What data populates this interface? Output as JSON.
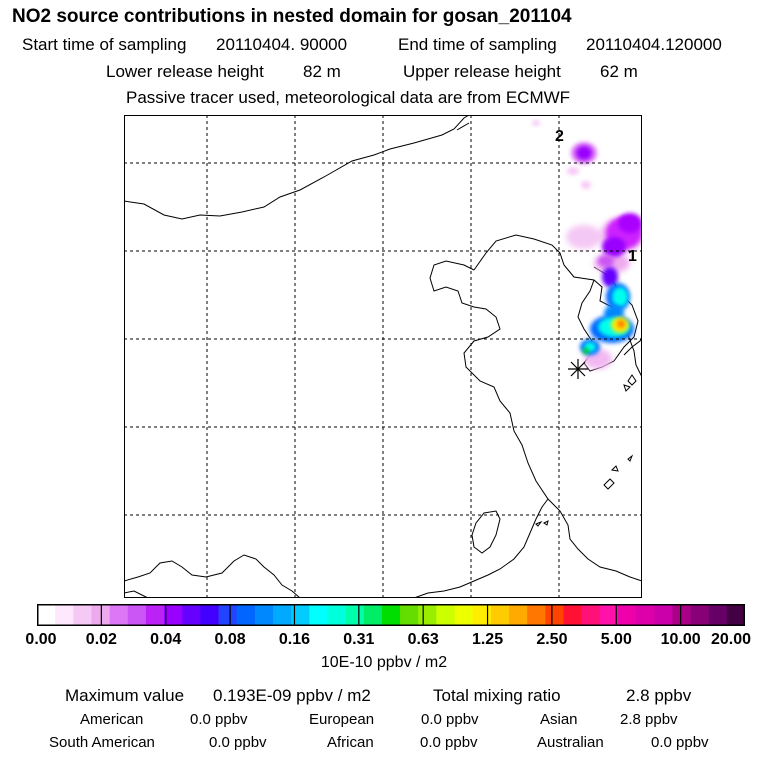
{
  "title": "NO2 source contributions in nested domain for gosan_201104",
  "header": {
    "start_label": "Start time of sampling",
    "start_value": "20110404. 90000",
    "end_label": "End time of sampling",
    "end_value": "20110404.120000",
    "lower_label": "Lower release height",
    "lower_value": "82 m",
    "upper_label": "Upper release height",
    "upper_value": "62 m",
    "note": "Passive tracer used, meteorological data are from ECMWF"
  },
  "map": {
    "annotations": [
      {
        "label": "2"
      },
      {
        "label": "1"
      }
    ],
    "source_marker": "asterisk-icon",
    "color_scale": {
      "white": "#ffffff",
      "pink": "#f2a0f2",
      "magenta": "#cc00ff",
      "purple": "#8800ff",
      "blue": "#0066ff",
      "cyan": "#00ffee",
      "green": "#00e060",
      "yellow": "#ffee00",
      "red": "#ff2020"
    }
  },
  "colorbar": {
    "units": "10E-10 ppbv / m2",
    "ticks": [
      "0.00",
      "0.02",
      "0.04",
      "0.08",
      "0.16",
      "0.31",
      "0.63",
      "1.25",
      "2.50",
      "5.00",
      "10.00",
      "20.00"
    ],
    "segments": [
      "#ffffff",
      "#fde8fd",
      "#f6c8f6",
      "#eeaaee",
      "#dd77f5",
      "#cc55f5",
      "#bb22f5",
      "#9900ff",
      "#6600ff",
      "#4400ff",
      "#2244ff",
      "#0066ff",
      "#0088ff",
      "#00aaff",
      "#00ccff",
      "#00ffff",
      "#00ffdd",
      "#00ffaa",
      "#00ee66",
      "#00dd00",
      "#66dd00",
      "#99ee00",
      "#ccff00",
      "#eeff00",
      "#ffee00",
      "#ffcc00",
      "#ffaa00",
      "#ff7700",
      "#ff4400",
      "#ff1133",
      "#ff1177",
      "#ff11aa",
      "#ee00aa",
      "#dd00aa",
      "#cc00aa",
      "#aa0088",
      "#880077",
      "#660066",
      "#440044"
    ]
  },
  "summary": {
    "max_label": "Maximum value",
    "max_value": "0.193E-09 ppbv / m2",
    "total_label": "Total mixing ratio",
    "total_value": "2.8 ppbv"
  },
  "regions": [
    {
      "name": "American",
      "value": "0.0 ppbv"
    },
    {
      "name": "European",
      "value": "0.0 ppbv"
    },
    {
      "name": "Asian",
      "value": "2.8 ppbv"
    },
    {
      "name": "South American",
      "value": "0.0 ppbv"
    },
    {
      "name": "African",
      "value": "0.0 ppbv"
    },
    {
      "name": "Australian",
      "value": "0.0 ppbv"
    }
  ]
}
